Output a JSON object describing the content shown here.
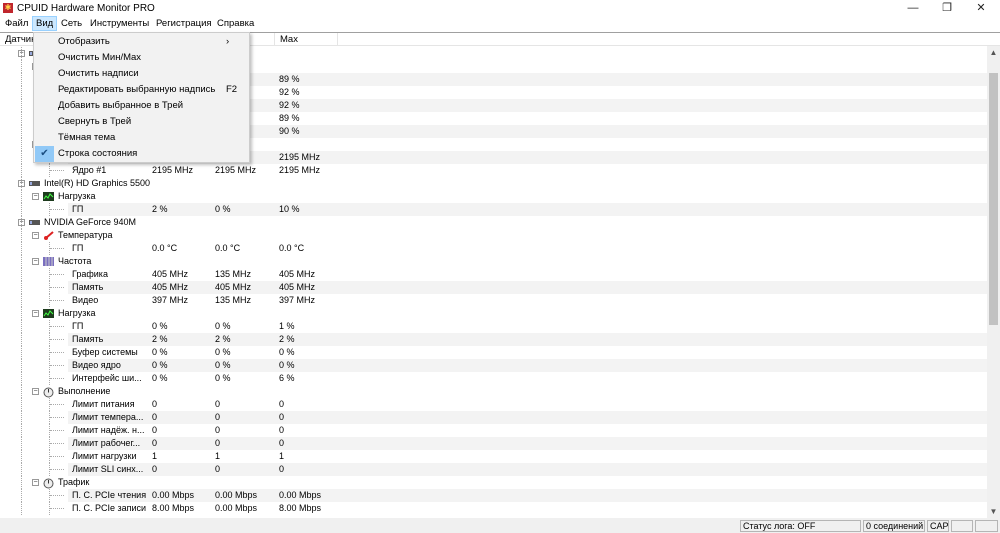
{
  "window": {
    "title": "CPUID Hardware Monitor PRO",
    "minimize": "—",
    "restore": "❐",
    "close": "✕"
  },
  "menubar": [
    "Файл",
    "Вид",
    "Сеть",
    "Инструменты",
    "Регистрация",
    "Справка"
  ],
  "columns": [
    "Датчик",
    "",
    "",
    "Max"
  ],
  "view_menu": [
    {
      "label": "Отобразить",
      "shortcut": "›"
    },
    {
      "label": "Очистить Мин/Max",
      "shortcut": ""
    },
    {
      "label": "Очистить надписи",
      "shortcut": ""
    },
    {
      "label": "Редактировать выбранную надпись",
      "shortcut": "F2"
    },
    {
      "label": "Добавить выбранное в Трей",
      "shortcut": ""
    },
    {
      "label": "Свернуть в Трей",
      "shortcut": ""
    },
    {
      "label": "Тёмная тема",
      "shortcut": ""
    },
    {
      "label": "Строка состояния",
      "shortcut": "",
      "checked": true
    }
  ],
  "rows": [
    {
      "level": 1,
      "icon": "chip-icon",
      "label": "",
      "v": [
        "",
        "",
        ""
      ]
    },
    {
      "level": 2,
      "icon": "load-icon",
      "label": "",
      "v": [
        "",
        "",
        ""
      ]
    },
    {
      "level": 3,
      "label": "",
      "v": [
        "",
        "",
        "89 %"
      ]
    },
    {
      "level": 3,
      "label": "",
      "v": [
        "",
        "",
        "92 %"
      ]
    },
    {
      "level": 3,
      "label": "",
      "v": [
        "",
        "",
        "92 %"
      ]
    },
    {
      "level": 3,
      "label": "",
      "v": [
        "",
        "",
        "89 %"
      ]
    },
    {
      "level": 3,
      "label": "",
      "v": [
        "",
        "",
        "90 %"
      ]
    },
    {
      "level": 2,
      "icon": "clock-icon",
      "label": "",
      "v": [
        "",
        "",
        ""
      ]
    },
    {
      "level": 3,
      "label": "",
      "v": [
        "",
        "z",
        "2195 MHz"
      ]
    },
    {
      "level": 3,
      "label": "Ядро #1",
      "v": [
        "2195 MHz",
        "2195 MHz",
        "2195 MHz"
      ]
    },
    {
      "level": 1,
      "icon": "chip-icon",
      "label": "Intel(R) HD Graphics 5500",
      "v": [
        "",
        "",
        ""
      ]
    },
    {
      "level": 2,
      "icon": "load-icon",
      "label": "Нагрузка",
      "v": [
        "",
        "",
        ""
      ]
    },
    {
      "level": 3,
      "label": "ГП",
      "v": [
        "2 %",
        "0 %",
        "10 %"
      ]
    },
    {
      "level": 1,
      "icon": "chip-icon",
      "label": "NVIDIA GeForce 940M",
      "v": [
        "",
        "",
        ""
      ]
    },
    {
      "level": 2,
      "icon": "thermometer-icon",
      "label": "Температура",
      "v": [
        "",
        "",
        ""
      ]
    },
    {
      "level": 3,
      "label": "ГП",
      "v": [
        "0.0 °C",
        "0.0 °C",
        "0.0 °C"
      ]
    },
    {
      "level": 2,
      "icon": "clock-icon",
      "label": "Частота",
      "v": [
        "",
        "",
        ""
      ]
    },
    {
      "level": 3,
      "label": "Графика",
      "v": [
        "405 MHz",
        "135 MHz",
        "405 MHz"
      ]
    },
    {
      "level": 3,
      "label": "Память",
      "v": [
        "405 MHz",
        "405 MHz",
        "405 MHz"
      ]
    },
    {
      "level": 3,
      "label": "Видео",
      "v": [
        "397 MHz",
        "135 MHz",
        "397 MHz"
      ]
    },
    {
      "level": 2,
      "icon": "load-icon",
      "label": "Нагрузка",
      "v": [
        "",
        "",
        ""
      ]
    },
    {
      "level": 3,
      "label": "ГП",
      "v": [
        "0 %",
        "0 %",
        "1 %"
      ]
    },
    {
      "level": 3,
      "label": "Память",
      "v": [
        "2 %",
        "2 %",
        "2 %"
      ]
    },
    {
      "level": 3,
      "label": "Буфер системы",
      "v": [
        "0 %",
        "0 %",
        "0 %"
      ]
    },
    {
      "level": 3,
      "label": "Видео ядро",
      "v": [
        "0 %",
        "0 %",
        "0 %"
      ]
    },
    {
      "level": 3,
      "label": "Интерфейс ши...",
      "v": [
        "0 %",
        "0 %",
        "6 %"
      ]
    },
    {
      "level": 2,
      "icon": "gauge-icon",
      "label": "Выполнение",
      "v": [
        "",
        "",
        ""
      ]
    },
    {
      "level": 3,
      "label": "Лимит питания",
      "v": [
        "0",
        "0",
        "0"
      ]
    },
    {
      "level": 3,
      "label": "Лимит темпера...",
      "v": [
        "0",
        "0",
        "0"
      ]
    },
    {
      "level": 3,
      "label": "Лимит надёж. н...",
      "v": [
        "0",
        "0",
        "0"
      ]
    },
    {
      "level": 3,
      "label": "Лимит рабочег...",
      "v": [
        "0",
        "0",
        "0"
      ]
    },
    {
      "level": 3,
      "label": "Лимит нагрузки",
      "v": [
        "1",
        "1",
        "1"
      ]
    },
    {
      "level": 3,
      "label": "Лимит SLI синх...",
      "v": [
        "0",
        "0",
        "0"
      ]
    },
    {
      "level": 2,
      "icon": "gauge-icon",
      "label": "Трафик",
      "v": [
        "",
        "",
        ""
      ]
    },
    {
      "level": 3,
      "label": "П. С. PCIe чтения",
      "v": [
        "0.00 Mbps",
        "0.00 Mbps",
        "0.00 Mbps"
      ]
    },
    {
      "level": 3,
      "label": "П. С. PCIe записи",
      "v": [
        "8.00 Mbps",
        "0.00 Mbps",
        "8.00 Mbps"
      ]
    }
  ],
  "statusbar": {
    "log": "Статус лога: OFF",
    "connections": "0 соединений",
    "cap": "CAP"
  },
  "colors": {
    "menu_highlight": "#cce8ff",
    "check_bg": "#91c9f7"
  }
}
